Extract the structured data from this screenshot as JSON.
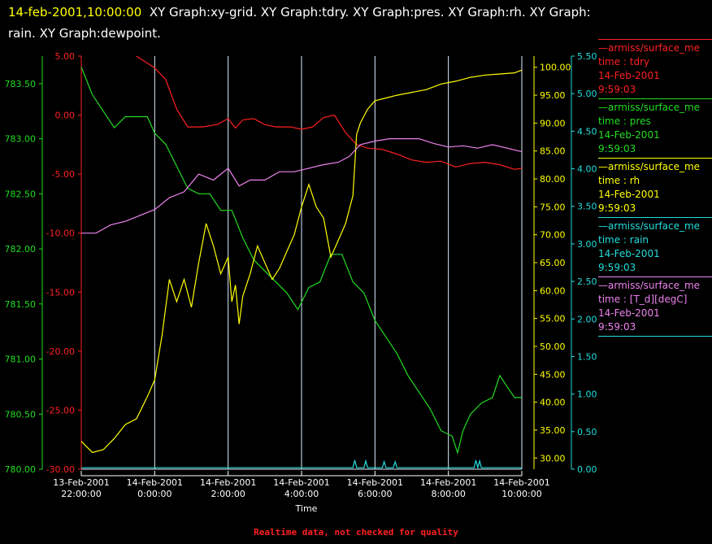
{
  "header": {
    "timestamp": "14-feb-2001,10:00:00",
    "title_rest_line1": "XY Graph:xy-grid.  XY Graph:tdry.  XY Graph:pres.  XY Graph:rh.  XY Graph:",
    "title_line2": "rain.  XY Graph:dewpoint."
  },
  "footer": {
    "note": "Realtime data, not checked for quality"
  },
  "legend": [
    {
      "l1": "—armiss/surface_me",
      "l2": "time : tdry",
      "l3": "14-Feb-2001",
      "l4": "9:59:03",
      "color": "#ff2020"
    },
    {
      "l1": "—armiss/surface_me",
      "l2": "time : pres",
      "l3": "14-Feb-2001",
      "l4": "9:59:03",
      "color": "#22dd22"
    },
    {
      "l1": "—armiss/surface_me",
      "l2": "time : rh",
      "l3": "14-Feb-2001",
      "l4": "9:59:03",
      "color": "#ffff00"
    },
    {
      "l1": "—armiss/surface_me",
      "l2": "time : rain",
      "l3": "14-Feb-2001",
      "l4": "9:59:03",
      "color": "#22dddd"
    },
    {
      "l1": "—armiss/surface_me",
      "l2": "time : [T_d][degC]",
      "l3": "14-Feb-2001",
      "l4": "9:59:03",
      "color": "#ee82ee"
    }
  ],
  "chart_data": {
    "type": "line",
    "xlabel": "Time",
    "x_range_hours": [
      22,
      34
    ],
    "x_ticks": [
      {
        "h": 22,
        "l1": "13-Feb-2001",
        "l2": "22:00:00"
      },
      {
        "h": 24,
        "l1": "14-Feb-2001",
        "l2": "0:00:00"
      },
      {
        "h": 26,
        "l1": "14-Feb-2001",
        "l2": "2:00:00"
      },
      {
        "h": 28,
        "l1": "14-Feb-2001",
        "l2": "4:00:00"
      },
      {
        "h": 30,
        "l1": "14-Feb-2001",
        "l2": "6:00:00"
      },
      {
        "h": 32,
        "l1": "14-Feb-2001",
        "l2": "8:00:00"
      },
      {
        "h": 34,
        "l1": "14-Feb-2001",
        "l2": "10:00:00"
      }
    ],
    "axes": {
      "tdry": {
        "color": "#ff2020",
        "range": [
          -30,
          5
        ],
        "ticks": [
          "5.00",
          "0.00",
          "-5.00",
          "-10.00",
          "-15.00",
          "-20.00",
          "-25.00",
          "-30.00"
        ]
      },
      "pres": {
        "color": "#22dd22",
        "range": [
          780,
          783.75
        ],
        "ticks": [
          "783.50",
          "783.00",
          "782.50",
          "782.00",
          "781.50",
          "781.00",
          "780.50",
          "780.00"
        ]
      },
      "rh": {
        "color": "#ffff00",
        "range": [
          28,
          102
        ],
        "ticks": [
          "100.00",
          "95.00",
          "90.00",
          "85.00",
          "80.00",
          "75.00",
          "70.00",
          "65.00",
          "60.00",
          "55.00",
          "50.00",
          "45.00",
          "40.00",
          "35.00",
          "30.00"
        ]
      },
      "rain": {
        "color": "#22dddd",
        "range": [
          0,
          5.5
        ],
        "ticks": [
          "5.50",
          "5.00",
          "4.50",
          "4.00",
          "3.50",
          "3.00",
          "2.50",
          "2.00",
          "1.50",
          "1.00",
          "0.50",
          "0.00"
        ]
      }
    },
    "series": [
      {
        "name": "tdry",
        "axis": "tdry",
        "color": "#ff2020",
        "points": [
          [
            23.5,
            5
          ],
          [
            24,
            4
          ],
          [
            24.3,
            3
          ],
          [
            24.6,
            0.5
          ],
          [
            24.9,
            -1
          ],
          [
            25.3,
            -1
          ],
          [
            25.7,
            -0.8
          ],
          [
            26,
            -0.3
          ],
          [
            26.2,
            -1.1
          ],
          [
            26.4,
            -0.4
          ],
          [
            26.7,
            -0.3
          ],
          [
            27,
            -0.8
          ],
          [
            27.3,
            -1
          ],
          [
            27.7,
            -1
          ],
          [
            28,
            -1.2
          ],
          [
            28.3,
            -1
          ],
          [
            28.6,
            -0.2
          ],
          [
            28.9,
            0
          ],
          [
            29.2,
            -1.5
          ],
          [
            29.5,
            -2.5
          ],
          [
            29.8,
            -2.8
          ],
          [
            30.2,
            -2.9
          ],
          [
            30.6,
            -3.3
          ],
          [
            31,
            -3.8
          ],
          [
            31.4,
            -4
          ],
          [
            31.8,
            -3.9
          ],
          [
            32.2,
            -4.4
          ],
          [
            32.6,
            -4.1
          ],
          [
            33,
            -4
          ],
          [
            33.4,
            -4.2
          ],
          [
            33.8,
            -4.6
          ],
          [
            34,
            -4.5
          ]
        ]
      },
      {
        "name": "pres",
        "axis": "pres",
        "color": "#22dd22",
        "points": [
          [
            22,
            783.65
          ],
          [
            22.3,
            783.4
          ],
          [
            22.6,
            783.25
          ],
          [
            22.9,
            783.1
          ],
          [
            23.2,
            783.2
          ],
          [
            23.5,
            783.2
          ],
          [
            23.8,
            783.2
          ],
          [
            24,
            783.05
          ],
          [
            24.3,
            782.95
          ],
          [
            24.6,
            782.75
          ],
          [
            24.9,
            782.55
          ],
          [
            25.2,
            782.5
          ],
          [
            25.5,
            782.5
          ],
          [
            25.8,
            782.35
          ],
          [
            26.1,
            782.35
          ],
          [
            26.4,
            782.1
          ],
          [
            26.7,
            781.9
          ],
          [
            27,
            781.8
          ],
          [
            27.3,
            781.7
          ],
          [
            27.6,
            781.6
          ],
          [
            27.9,
            781.45
          ],
          [
            28.2,
            781.65
          ],
          [
            28.5,
            781.7
          ],
          [
            28.8,
            781.95
          ],
          [
            29.1,
            781.95
          ],
          [
            29.4,
            781.7
          ],
          [
            29.7,
            781.6
          ],
          [
            30,
            781.35
          ],
          [
            30.3,
            781.2
          ],
          [
            30.6,
            781.05
          ],
          [
            30.9,
            780.85
          ],
          [
            31.2,
            780.7
          ],
          [
            31.5,
            780.55
          ],
          [
            31.8,
            780.35
          ],
          [
            32.1,
            780.3
          ],
          [
            32.25,
            780.15
          ],
          [
            32.4,
            780.35
          ],
          [
            32.6,
            780.5
          ],
          [
            32.9,
            780.6
          ],
          [
            33.2,
            780.65
          ],
          [
            33.4,
            780.85
          ],
          [
            33.6,
            780.75
          ],
          [
            33.8,
            780.65
          ],
          [
            34,
            780.65
          ]
        ]
      },
      {
        "name": "rh",
        "axis": "rh",
        "color": "#ffff00",
        "points": [
          [
            22,
            33
          ],
          [
            22.3,
            31
          ],
          [
            22.6,
            31.5
          ],
          [
            22.9,
            33.5
          ],
          [
            23.2,
            36
          ],
          [
            23.5,
            37
          ],
          [
            23.8,
            41
          ],
          [
            24,
            44
          ],
          [
            24.2,
            52
          ],
          [
            24.4,
            62
          ],
          [
            24.6,
            58
          ],
          [
            24.8,
            62
          ],
          [
            25,
            57
          ],
          [
            25.2,
            65
          ],
          [
            25.4,
            72
          ],
          [
            25.6,
            68
          ],
          [
            25.8,
            63
          ],
          [
            26,
            66
          ],
          [
            26.1,
            58
          ],
          [
            26.2,
            61
          ],
          [
            26.3,
            54
          ],
          [
            26.4,
            59
          ],
          [
            26.6,
            63
          ],
          [
            26.8,
            68
          ],
          [
            27,
            65
          ],
          [
            27.2,
            62
          ],
          [
            27.4,
            64
          ],
          [
            27.6,
            67
          ],
          [
            27.8,
            70
          ],
          [
            28,
            75
          ],
          [
            28.2,
            79
          ],
          [
            28.4,
            75
          ],
          [
            28.6,
            73
          ],
          [
            28.8,
            66
          ],
          [
            29,
            69
          ],
          [
            29.2,
            72
          ],
          [
            29.4,
            77
          ],
          [
            29.5,
            88
          ],
          [
            29.6,
            90
          ],
          [
            29.8,
            92.5
          ],
          [
            30,
            94
          ],
          [
            30.3,
            94.5
          ],
          [
            30.6,
            95
          ],
          [
            31,
            95.5
          ],
          [
            31.4,
            96
          ],
          [
            31.8,
            97
          ],
          [
            32.2,
            97.5
          ],
          [
            32.6,
            98.2
          ],
          [
            33,
            98.6
          ],
          [
            33.4,
            98.8
          ],
          [
            33.8,
            99
          ],
          [
            34,
            99.5
          ]
        ]
      },
      {
        "name": "rain",
        "axis": "rain",
        "color": "#22dddd",
        "points": [
          [
            22,
            0.02
          ],
          [
            29.4,
            0.02
          ],
          [
            29.45,
            0.12
          ],
          [
            29.5,
            0.02
          ],
          [
            29.7,
            0.02
          ],
          [
            29.75,
            0.11
          ],
          [
            29.8,
            0.02
          ],
          [
            30.2,
            0.02
          ],
          [
            30.25,
            0.1
          ],
          [
            30.3,
            0.02
          ],
          [
            30.5,
            0.02
          ],
          [
            30.55,
            0.1
          ],
          [
            30.6,
            0.02
          ],
          [
            32.7,
            0.02
          ],
          [
            32.75,
            0.12
          ],
          [
            32.8,
            0.02
          ],
          [
            32.85,
            0.11
          ],
          [
            32.9,
            0.02
          ],
          [
            34,
            0.02
          ]
        ]
      },
      {
        "name": "[T_d][degC]",
        "axis": "tdry",
        "color": "#ee82ee",
        "points": [
          [
            22,
            -10
          ],
          [
            22.4,
            -10
          ],
          [
            22.8,
            -9.3
          ],
          [
            23.2,
            -9
          ],
          [
            23.6,
            -8.5
          ],
          [
            24,
            -8
          ],
          [
            24.4,
            -7
          ],
          [
            24.8,
            -6.5
          ],
          [
            25.2,
            -5
          ],
          [
            25.6,
            -5.5
          ],
          [
            26,
            -4.5
          ],
          [
            26.3,
            -6
          ],
          [
            26.6,
            -5.5
          ],
          [
            27,
            -5.5
          ],
          [
            27.4,
            -4.8
          ],
          [
            27.8,
            -4.8
          ],
          [
            28.2,
            -4.5
          ],
          [
            28.6,
            -4.2
          ],
          [
            29,
            -4
          ],
          [
            29.3,
            -3.5
          ],
          [
            29.6,
            -2.5
          ],
          [
            30,
            -2.2
          ],
          [
            30.4,
            -2
          ],
          [
            30.8,
            -2
          ],
          [
            31.2,
            -2
          ],
          [
            31.6,
            -2.4
          ],
          [
            32,
            -2.7
          ],
          [
            32.4,
            -2.6
          ],
          [
            32.8,
            -2.8
          ],
          [
            33.2,
            -2.5
          ],
          [
            33.6,
            -2.8
          ],
          [
            34,
            -3.1
          ]
        ]
      }
    ]
  }
}
